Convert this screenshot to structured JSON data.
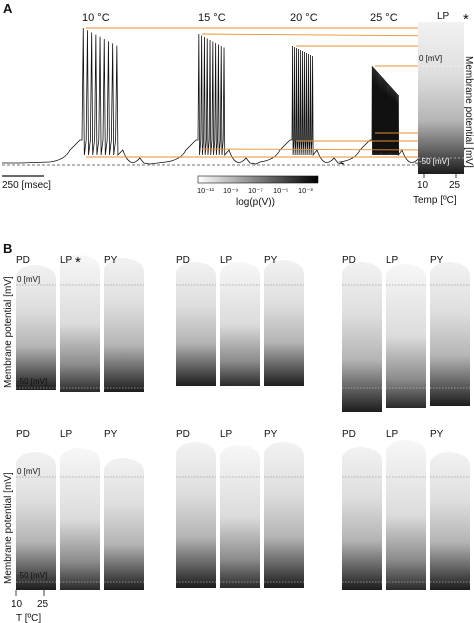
{
  "panel_a": {
    "label": "A",
    "temps": [
      "10 °C",
      "15 °C",
      "20 °C",
      "25 °C"
    ],
    "time_scale": "250 [msec]",
    "colorbar_ticks": [
      "10⁻¹¹",
      "10⁻⁹",
      "10⁻⁷",
      "10⁻⁵",
      "10⁻³"
    ],
    "colorbar_label": "log(p(V))",
    "side_cell": "LP",
    "side_star": "*",
    "side_ylabel": "Membrane potential [mV]",
    "side_0mv": "0 [mV]",
    "side_m50mv": "-50 [mV]",
    "side_xticks": [
      "10",
      "25"
    ],
    "side_xlabel": "Temp [ºC]"
  },
  "panel_b": {
    "label": "B",
    "ylabel": "Membrane potential [mV]",
    "tick_0": "0 [mV]",
    "tick_m50": "-50 [mV]",
    "cells": [
      "PD",
      "LP",
      "PY"
    ],
    "star": "*",
    "xticks": [
      "10",
      "25"
    ],
    "xlabel": "T [ºC]"
  },
  "chart_data": [
    {
      "type": "line",
      "description": "Membrane potential traces at four temperatures",
      "series": [
        {
          "name": "10 °C",
          "bursts_spikes": 9
        },
        {
          "name": "15 °C",
          "bursts_spikes": 10
        },
        {
          "name": "20 °C",
          "bursts_spikes": 11
        },
        {
          "name": "25 °C",
          "bursts_spikes": 30
        }
      ]
    },
    {
      "type": "heatmap",
      "description": "Voltage probability distribution vs temperature for PD, LP, PY in 6 preparations",
      "color_scale": {
        "min": "1e-11",
        "max": "1e-3"
      },
      "y_ticks_mV": [
        0,
        -50
      ],
      "x_range_C": [
        10,
        25
      ]
    }
  ]
}
